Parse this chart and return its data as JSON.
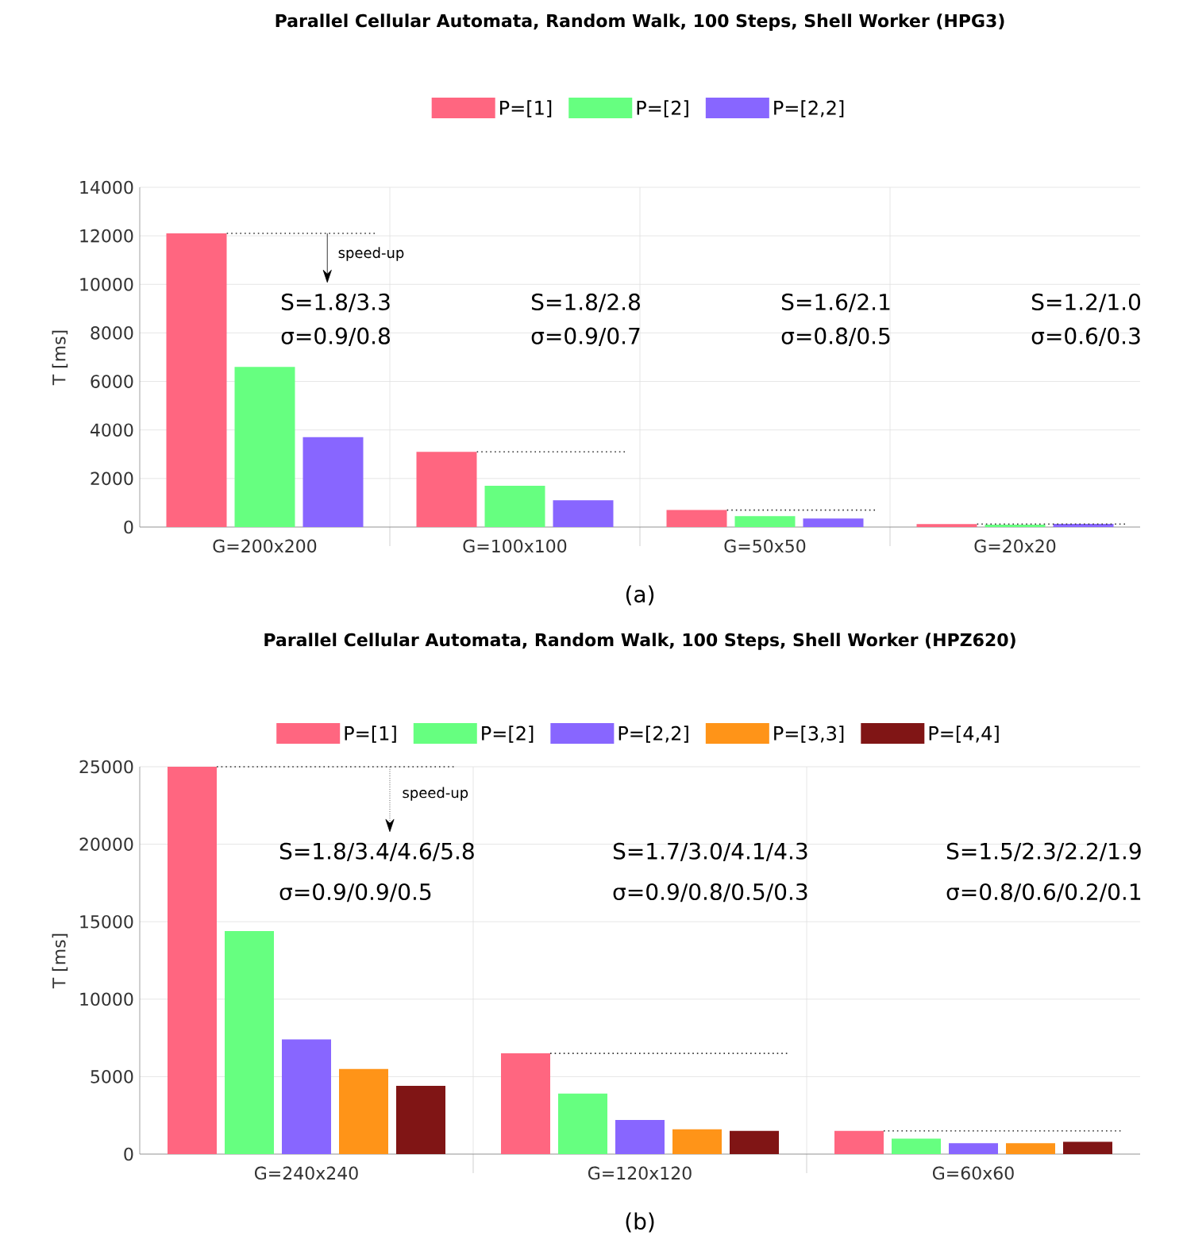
{
  "chart_data": [
    {
      "type": "bar",
      "title": "Parallel Cellular Automata, Random Walk, 100 Steps, Shell Worker (HPG3)",
      "ylabel": "T [ms]",
      "categories": [
        "G=200x200",
        "G=100x100",
        "G=50x50",
        "G=20x20"
      ],
      "series": [
        {
          "name": "P=[1]",
          "color": "#ff6680",
          "values": [
            12100,
            3100,
            700,
            120
          ]
        },
        {
          "name": "P=[2]",
          "color": "#66ff80",
          "values": [
            6600,
            1700,
            450,
            100
          ]
        },
        {
          "name": "P=[2,2]",
          "color": "#8866ff",
          "values": [
            3700,
            1100,
            350,
            130
          ]
        }
      ],
      "ylim": [
        0,
        14000
      ],
      "yticks": [
        0,
        2000,
        4000,
        6000,
        8000,
        10000,
        12000,
        14000
      ],
      "grid": true,
      "legend": "top",
      "ref_lines": [
        {
          "axis": "y",
          "value": 12100,
          "line_style": "dotted"
        },
        {
          "axis": "y",
          "value": 3100,
          "line_style": "dotted"
        },
        {
          "axis": "y",
          "value": 700,
          "line_style": "dotted"
        },
        {
          "axis": "y",
          "value": 120,
          "line_style": "dotted"
        }
      ],
      "annotations": [
        "S=1.8/3.3",
        "σ=0.9/0.8",
        "S=1.8/2.8",
        "σ=0.9/0.7",
        "S=1.6/2.1",
        "σ=0.8/0.5",
        "S=1.2/1.0",
        "σ=0.6/0.3",
        "speed-up",
        "(a)"
      ]
    },
    {
      "type": "bar",
      "title": "Parallel Cellular Automata, Random Walk, 100 Steps, Shell Worker (HPZ620)",
      "ylabel": "T [ms]",
      "categories": [
        "G=240x240",
        "G=120x120",
        "G=60x60"
      ],
      "series": [
        {
          "name": "P=[1]",
          "color": "#ff6680",
          "values": [
            25000,
            6500,
            1500
          ]
        },
        {
          "name": "P=[2]",
          "color": "#66ff80",
          "values": [
            14400,
            3900,
            1000
          ]
        },
        {
          "name": "P=[2,2]",
          "color": "#8866ff",
          "values": [
            7400,
            2200,
            700
          ]
        },
        {
          "name": "P=[3,3]",
          "color": "#ff9418",
          "values": [
            5500,
            1600,
            700
          ]
        },
        {
          "name": "P=[4,4]",
          "color": "#801515",
          "values": [
            4400,
            1500,
            800
          ]
        }
      ],
      "ylim": [
        0,
        25000
      ],
      "yticks": [
        0,
        5000,
        10000,
        15000,
        20000,
        25000
      ],
      "grid": true,
      "legend": "top",
      "ref_lines": [
        {
          "axis": "y",
          "value": 25000,
          "line_style": "dotted"
        },
        {
          "axis": "y",
          "value": 6500,
          "line_style": "dotted"
        },
        {
          "axis": "y",
          "value": 1500,
          "line_style": "dotted"
        }
      ],
      "annotations": [
        "S=1.8/3.4/4.6/5.8",
        "σ=0.9/0.9/0.5",
        "S=1.7/3.0/4.1/4.3",
        "σ=0.9/0.8/0.5/0.3",
        "S=1.5/2.3/2.2/1.9",
        "σ=0.8/0.6/0.2/0.1",
        "speed-up",
        "(b)"
      ]
    }
  ]
}
